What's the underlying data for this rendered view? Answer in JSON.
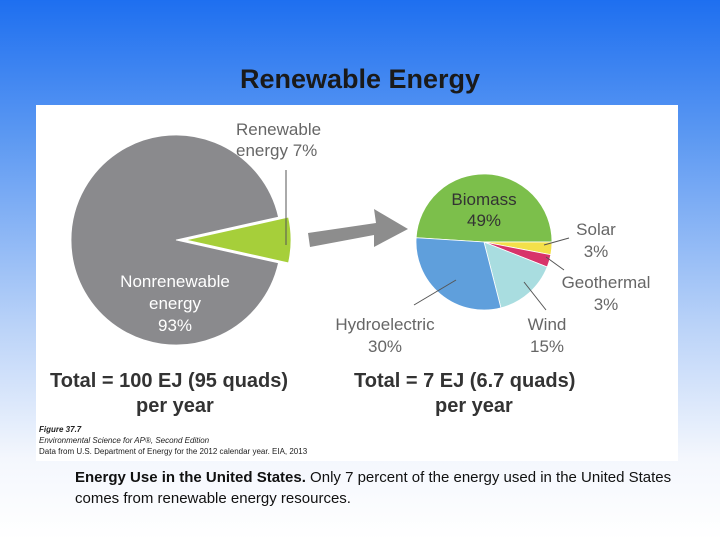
{
  "slide": {
    "title": "Renewable Energy",
    "caption_bold": "Energy Use in the United States.",
    "caption_text": " Only 7 percent of the energy used in the United States comes from renewable energy resources."
  },
  "figure": {
    "credit_line1": "Figure 37.7",
    "credit_line2": "Environmental Science for AP®, Second Edition",
    "credit_line3": "Data from U.S. Department of Energy for the 2012 calendar year. EIA, 2013"
  },
  "colors": {
    "nonrenewable": "#8a8a8d",
    "renewable": "#a6cf3a",
    "biomass": "#7cbf4b",
    "solar": "#f3e04a",
    "geothermal": "#d8336a",
    "wind": "#a9dde0",
    "hydroelectric": "#5f9fdc",
    "arrow": "#8d8d8d"
  },
  "chart_data": [
    {
      "type": "pie",
      "slices": [
        {
          "label_lines": [
            "Nonrenewable",
            "energy",
            "93%"
          ],
          "value": 93,
          "color_key": "nonrenewable"
        },
        {
          "label_lines": [
            "Renewable",
            "energy 7%"
          ],
          "value": 7,
          "color_key": "renewable"
        }
      ],
      "total_lines": [
        "Total = 100 EJ (95 quads)",
        "per year"
      ]
    },
    {
      "type": "pie",
      "slices": [
        {
          "label_lines": [
            "Biomass",
            "49%"
          ],
          "value": 49,
          "color_key": "biomass"
        },
        {
          "label_lines": [
            "Solar",
            "3%"
          ],
          "value": 3,
          "color_key": "solar"
        },
        {
          "label_lines": [
            "Geothermal",
            "3%"
          ],
          "value": 3,
          "color_key": "geothermal"
        },
        {
          "label_lines": [
            "Wind",
            "15%"
          ],
          "value": 15,
          "color_key": "wind"
        },
        {
          "label_lines": [
            "Hydroelectric",
            "30%"
          ],
          "value": 30,
          "color_key": "hydroelectric"
        }
      ],
      "total_lines": [
        "Total = 7 EJ (6.7 quads)",
        "per year"
      ]
    }
  ]
}
